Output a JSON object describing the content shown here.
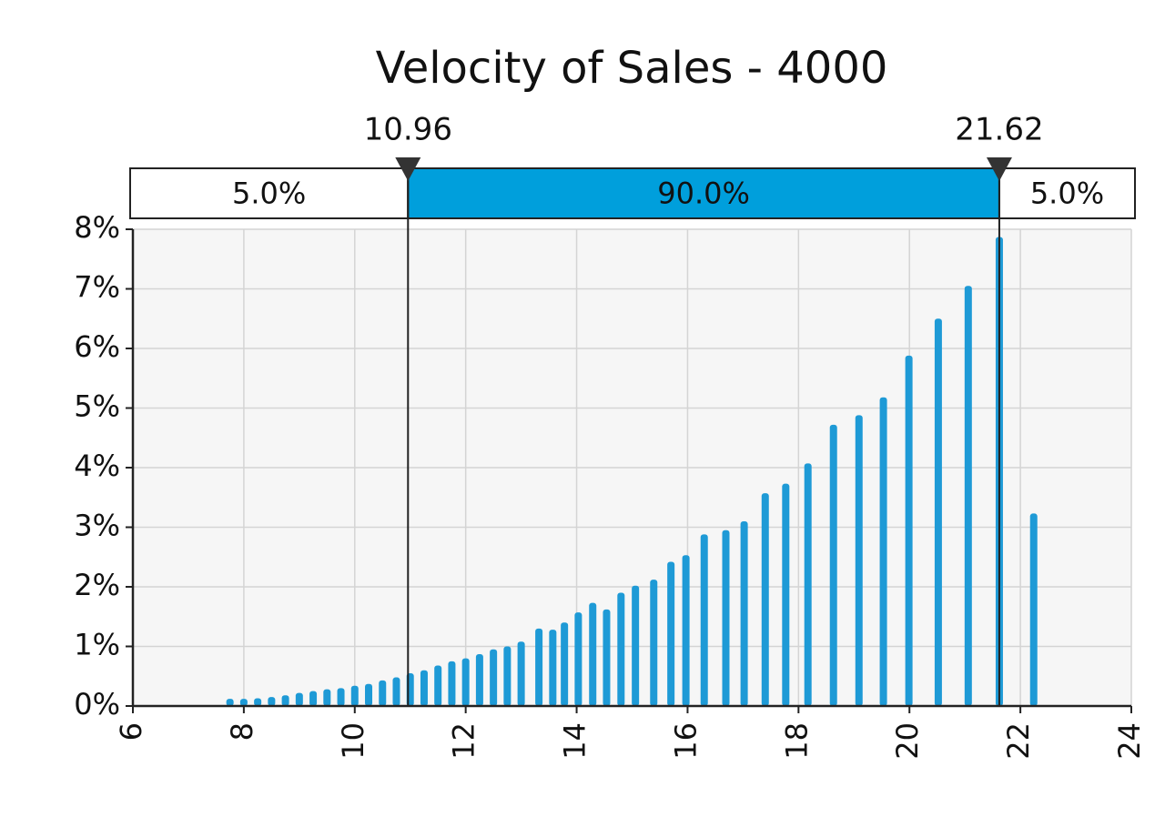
{
  "chart_data": {
    "type": "bar",
    "title": "Velocity of Sales - 4000",
    "x": [
      7.75,
      8.0,
      8.25,
      8.5,
      8.75,
      9.0,
      9.25,
      9.5,
      9.75,
      10.0,
      10.25,
      10.5,
      10.75,
      11.0,
      11.25,
      11.5,
      11.75,
      12.0,
      12.25,
      12.5,
      12.75,
      13.0,
      13.32,
      13.57,
      13.78,
      14.03,
      14.29,
      14.54,
      14.8,
      15.06,
      15.39,
      15.7,
      15.97,
      16.3,
      16.69,
      17.02,
      17.4,
      17.77,
      18.17,
      18.63,
      19.09,
      19.53,
      19.99,
      20.52,
      21.06,
      21.62,
      22.24
    ],
    "values": [
      0.12,
      0.12,
      0.13,
      0.15,
      0.18,
      0.22,
      0.25,
      0.28,
      0.3,
      0.34,
      0.37,
      0.43,
      0.48,
      0.55,
      0.6,
      0.68,
      0.75,
      0.8,
      0.87,
      0.95,
      1.0,
      1.08,
      1.3,
      1.28,
      1.4,
      1.57,
      1.73,
      1.62,
      1.9,
      2.02,
      2.12,
      2.42,
      2.53,
      2.88,
      2.95,
      3.1,
      3.57,
      3.73,
      4.07,
      4.72,
      4.88,
      5.18,
      5.88,
      6.5,
      7.05,
      7.87,
      3.23
    ],
    "color": "#1e9ad6",
    "xlim": [
      6,
      24
    ],
    "xticks": [
      6,
      8,
      10,
      12,
      14,
      16,
      18,
      20,
      22,
      24
    ],
    "ylim": [
      0,
      8
    ],
    "yticks": [
      {
        "value": 0,
        "label": "0%"
      },
      {
        "value": 1,
        "label": "1%"
      },
      {
        "value": 2,
        "label": "2%"
      },
      {
        "value": 3,
        "label": "3%"
      },
      {
        "value": 4,
        "label": "4%"
      },
      {
        "value": 5,
        "label": "5%"
      },
      {
        "value": 6,
        "label": "6%"
      },
      {
        "value": 7,
        "label": "7%"
      },
      {
        "value": 8,
        "label": "8%"
      }
    ],
    "grid": true,
    "markers": [
      10.96,
      21.62
    ],
    "bands": [
      {
        "value": 5,
        "label": "5.0%"
      },
      {
        "value": 90,
        "label": "90.0%"
      },
      {
        "value": 5,
        "label": "5.0%"
      }
    ],
    "band_color": "#009fdc"
  }
}
